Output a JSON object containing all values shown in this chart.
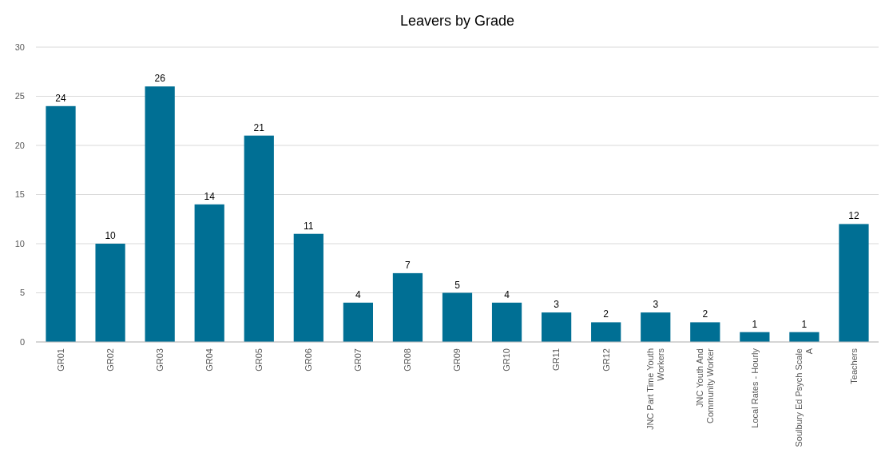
{
  "chart_data": {
    "type": "bar",
    "title": "Leavers by Grade",
    "categories": [
      "GR01",
      "GR02",
      "GR03",
      "GR04",
      "GR05",
      "GR06",
      "GR07",
      "GR08",
      "GR09",
      "GR10",
      "GR11",
      "GR12",
      "JNC Part Time Youth Workers",
      "JNC Youth And Community Worker",
      "Local Rates - Hourly",
      "Soulbury Ed Psych Scale A",
      "Teachers"
    ],
    "values": [
      24,
      10,
      26,
      14,
      21,
      11,
      4,
      7,
      5,
      4,
      3,
      2,
      3,
      2,
      1,
      1,
      12
    ],
    "color": "#006f94",
    "ylim": [
      0,
      30
    ],
    "yticks": [
      0,
      5,
      10,
      15,
      20,
      25,
      30
    ],
    "grid": "y",
    "data_labels": true
  }
}
